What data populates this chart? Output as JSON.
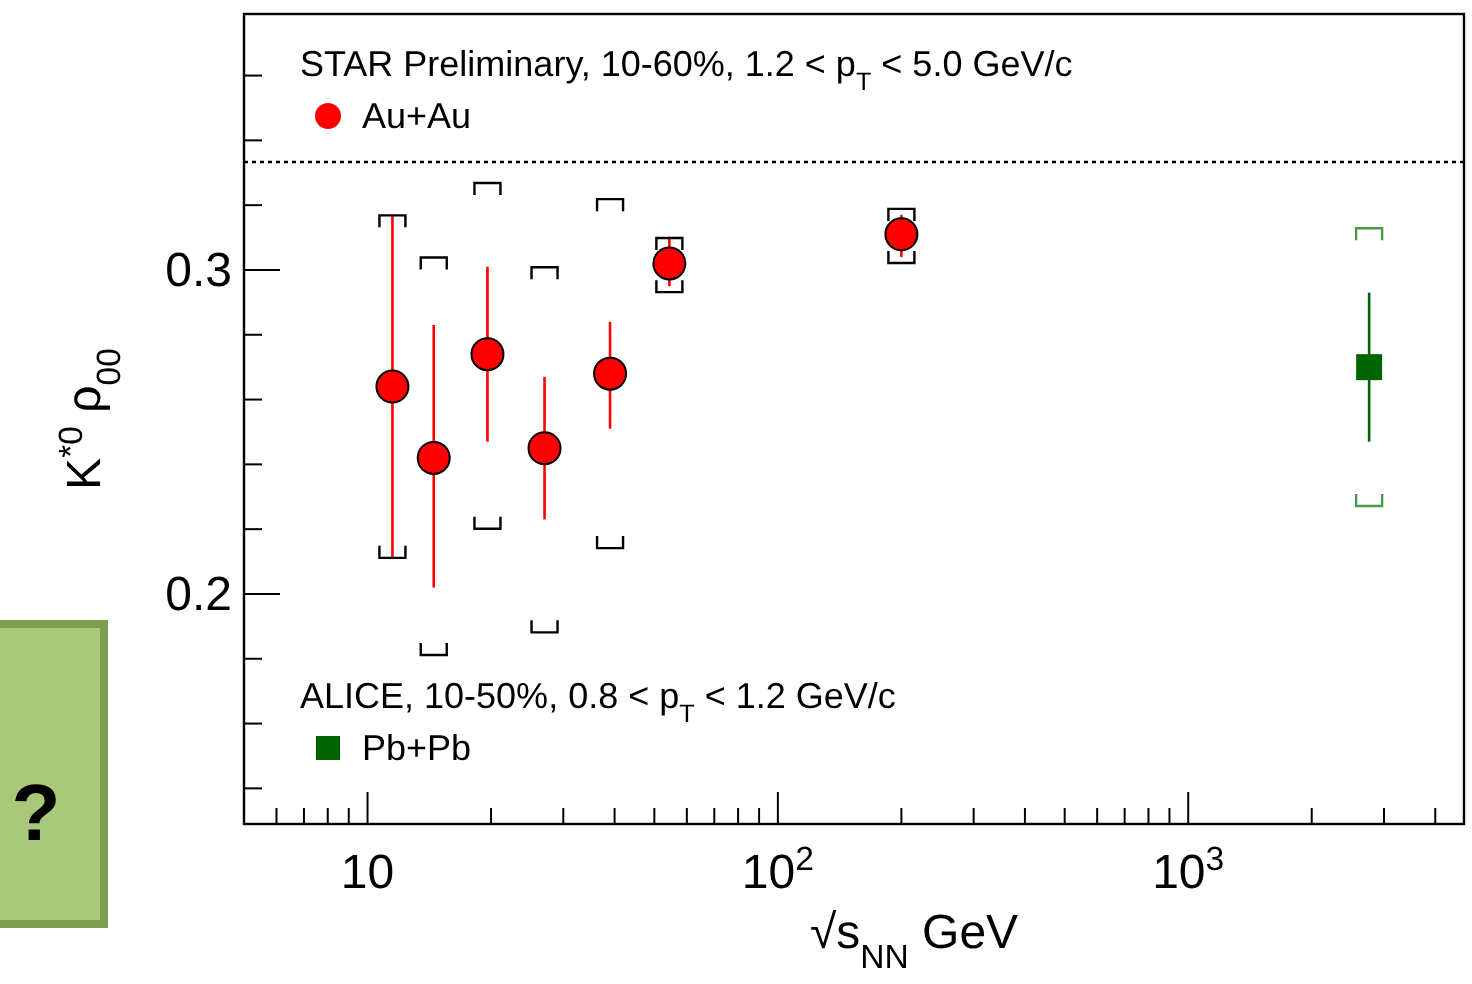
{
  "chart_data": {
    "type": "scatter",
    "xlabel": "√s$_{NN}$ GeV",
    "ylabel": "K$^{*0}$ ρ$_{00}$",
    "log": "x",
    "xlim": [
      5,
      4700
    ],
    "ylim": [
      0.129,
      0.379
    ],
    "xticks": [
      {
        "value": 6,
        "label": null
      },
      {
        "value": 7,
        "label": null
      },
      {
        "value": 8,
        "label": null
      },
      {
        "value": 9,
        "label": null
      },
      10,
      {
        "value": 20,
        "label": null
      },
      {
        "value": 30,
        "label": null
      },
      {
        "value": 40,
        "label": null
      },
      {
        "value": 50,
        "label": null
      },
      {
        "value": 60,
        "label": null
      },
      {
        "value": 70,
        "label": null
      },
      {
        "value": 80,
        "label": null
      },
      {
        "value": 90,
        "label": null
      },
      {
        "value": 100,
        "label": "10$^{2}$"
      },
      {
        "value": 200,
        "label": null
      },
      {
        "value": 300,
        "label": null
      },
      {
        "value": 400,
        "label": null
      },
      {
        "value": 500,
        "label": null
      },
      {
        "value": 600,
        "label": null
      },
      {
        "value": 700,
        "label": null
      },
      {
        "value": 800,
        "label": null
      },
      {
        "value": 900,
        "label": null
      },
      {
        "value": 1000,
        "label": "10$^{3}$"
      },
      {
        "value": 2000,
        "label": null
      },
      {
        "value": 3000,
        "label": null
      },
      {
        "value": 4000,
        "label": null
      }
    ],
    "yticks": [
      {
        "value": 0.14,
        "label": null
      },
      {
        "value": 0.16,
        "label": null
      },
      {
        "value": 0.18,
        "label": null
      },
      0.2,
      {
        "value": 0.22,
        "label": null
      },
      {
        "value": 0.24,
        "label": null
      },
      {
        "value": 0.26,
        "label": null
      },
      {
        "value": 0.28,
        "label": null
      },
      0.3,
      {
        "value": 0.32,
        "label": null
      },
      {
        "value": 0.34,
        "label": null
      },
      {
        "value": 0.36,
        "label": null
      }
    ],
    "grid": false,
    "legend": "left",
    "series": [
      {
        "name": "Au+Au",
        "color": "#ff0000",
        "marker": "circle",
        "x": [
          11.5,
          14.5,
          19.6,
          27,
          39,
          54.4,
          200
        ],
        "values": [
          0.264,
          0.242,
          0.274,
          0.245,
          0.268,
          0.302,
          0.311
        ],
        "errors": [
          [
            0.211,
            0.317
          ],
          [
            0.202,
            0.283
          ],
          [
            0.247,
            0.301
          ],
          [
            0.223,
            0.267
          ],
          [
            0.251,
            0.284
          ],
          [
            0.295,
            0.31
          ],
          [
            0.304,
            0.317
          ]
        ]
      },
      {
        "name": "Pb+Pb",
        "color": "#006400",
        "marker": "square",
        "x": [
          2760
        ],
        "values": [
          0.27
        ],
        "errors": [
          [
            0.247,
            0.293
          ]
        ]
      },
      {
        "color": "#000000",
        "marker": "cross",
        "x": [
          11.5,
          14.5,
          19.6,
          27,
          39,
          54.4,
          200
        ],
        "values": [
          0.315,
          0.302,
          0.325,
          0.299,
          0.32,
          0.308,
          0.317
        ]
      },
      {
        "color": "#000000",
        "marker": "cross",
        "x": [
          11.5,
          14.5,
          19.6,
          27,
          39,
          54.4,
          200
        ],
        "values": [
          0.213,
          0.183,
          0.222,
          0.19,
          0.216,
          0.295,
          0.304
        ]
      },
      {
        "color": "#4a9a4a",
        "marker": "cross",
        "x": [
          2760
        ],
        "values": [
          0.311
        ]
      },
      {
        "color": "#4a9a4a",
        "marker": "cross",
        "x": [
          2760
        ],
        "values": [
          0.229
        ]
      }
    ],
    "ref_lines": [
      {
        "axis": "y",
        "value": 0.3333,
        "line_style": "dotted",
        "color": "#000000"
      }
    ],
    "annotations": [
      "STAR Preliminary, 10-60%, 1.2 < p$_{T}$ < 5.0 GeV/c",
      "ALICE, 10-50%, 0.8 < p$_{T}$ < 1.2 GeV/c",
      "?"
    ]
  }
}
